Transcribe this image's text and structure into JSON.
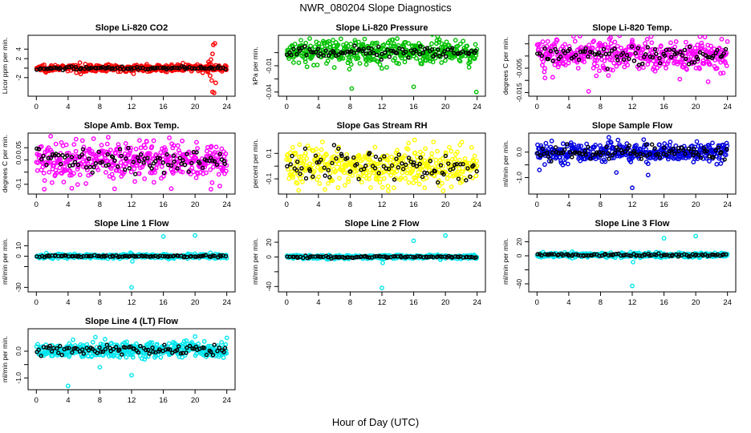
{
  "figure": {
    "title": "NWR_080204  Slope Diagnostics",
    "xlabel": "Hour of Day (UTC)"
  },
  "chart_data": [
    {
      "type": "scatter",
      "title": "Slope Li-820 CO2",
      "ylabel": "Licor ppm per min.",
      "color": "#ff0000",
      "xlim": [
        0,
        24
      ],
      "xticks": [
        "0",
        "4",
        "8",
        "12",
        "16",
        "20",
        "24"
      ],
      "ylim": [
        -5.4,
        6.4
      ],
      "yticks": [
        {
          "value": -2,
          "label": "-2"
        },
        {
          "value": 0,
          "label": ""
        },
        {
          "value": 2,
          "label": "2"
        },
        {
          "value": 4,
          "label": "4"
        }
      ],
      "spread": 0.35,
      "black_spread": 0.15,
      "center": 0,
      "outliers": [
        [
          21.6,
          -0.8
        ],
        [
          21.8,
          0.9
        ],
        [
          21.9,
          -1.6
        ],
        [
          22.0,
          1.8
        ],
        [
          22.1,
          -2.6
        ],
        [
          22.2,
          3.0
        ],
        [
          22.3,
          4.9
        ],
        [
          22.4,
          -5.2
        ],
        [
          22.5,
          5.2
        ],
        [
          22.6,
          -3.1
        ],
        [
          22.2,
          -5.0
        ],
        [
          21.7,
          1.3
        ]
      ]
    },
    {
      "type": "scatter",
      "title": "Slope Li-820 Pressure",
      "ylabel": "kPa per min.",
      "color": "#00c000",
      "xlim": [
        0,
        24
      ],
      "xticks": [
        "0",
        "4",
        "8",
        "12",
        "16",
        "20",
        "24"
      ],
      "ylim": [
        -0.042,
        0.022
      ],
      "yticks": [
        {
          "value": -0.04,
          "label": "-0.04"
        },
        {
          "value": -0.025,
          "label": ""
        },
        {
          "value": -0.01,
          "label": "-0.01"
        },
        {
          "value": 0.005,
          "label": ""
        }
      ],
      "spread": 0.007,
      "black_spread": 0.003,
      "center": 0.006,
      "outliers": [
        [
          7.9,
          -0.014
        ],
        [
          8.2,
          -0.036
        ],
        [
          16.0,
          -0.034
        ],
        [
          23.9,
          -0.04
        ],
        [
          6.0,
          -0.012
        ],
        [
          12.0,
          -0.013
        ]
      ]
    },
    {
      "type": "scatter",
      "title": "Slope Li-820 Temp.",
      "ylabel": "degrees C per min.",
      "color": "#ff00ff",
      "xlim": [
        0,
        24
      ],
      "xticks": [
        "0",
        "4",
        "8",
        "12",
        "16",
        "20",
        "24"
      ],
      "ylim": [
        -0.0155,
        0.0075
      ],
      "yticks": [
        {
          "value": -0.015,
          "label": "-0.015"
        },
        {
          "value": -0.01,
          "label": ""
        },
        {
          "value": -0.005,
          "label": "-0.005"
        },
        {
          "value": 0,
          "label": ""
        },
        {
          "value": 0.005,
          "label": ""
        }
      ],
      "spread": 0.0032,
      "black_spread": 0.0018,
      "center": 0.0005,
      "outliers": [
        [
          6.5,
          -0.0145
        ],
        [
          12.0,
          0.0065
        ],
        [
          1.0,
          -0.009
        ],
        [
          9.0,
          -0.008
        ],
        [
          18.0,
          -0.0095
        ]
      ]
    },
    {
      "type": "scatter",
      "title": "Slope Amb. Box Temp.",
      "ylabel": "degrees C per min.",
      "color": "#ff00ff",
      "xlim": [
        0,
        24
      ],
      "xticks": [
        "0",
        "4",
        "8",
        "12",
        "16",
        "20",
        "24"
      ],
      "ylim": [
        -0.13,
        0.1
      ],
      "yticks": [
        {
          "value": -0.1,
          "label": "-0.1"
        },
        {
          "value": -0.05,
          "label": ""
        },
        {
          "value": 0,
          "label": "0.0"
        },
        {
          "value": 0.05,
          "label": "0.05"
        }
      ],
      "spread": 0.04,
      "black_spread": 0.025,
      "center": 0.0,
      "outliers": [
        [
          1.0,
          -0.12
        ],
        [
          17.0,
          -0.118
        ],
        [
          22.0,
          -0.12
        ],
        [
          5.0,
          0.085
        ],
        [
          13.0,
          0.08
        ]
      ]
    },
    {
      "type": "scatter",
      "title": "Slope Gas Stream RH",
      "ylabel": "percent per min.",
      "color": "#ffff00",
      "xlim": [
        0,
        24
      ],
      "xticks": [
        "0",
        "4",
        "8",
        "12",
        "16",
        "20",
        "24"
      ],
      "ylim": [
        -0.2,
        0.24
      ],
      "yticks": [
        {
          "value": -0.1,
          "label": "-0.1"
        },
        {
          "value": 0,
          "label": ""
        },
        {
          "value": 0.1,
          "label": "0.1"
        }
      ],
      "spread": 0.07,
      "black_spread": 0.06,
      "center": 0.0,
      "outliers": [
        [
          1.5,
          -0.19
        ],
        [
          4.5,
          0.19
        ],
        [
          13.5,
          -0.17
        ],
        [
          18.5,
          0.19
        ]
      ]
    },
    {
      "type": "scatter",
      "title": "Slope Sample Flow",
      "ylabel": "ml/min per min.",
      "color": "#0000e0",
      "xlim": [
        0,
        24
      ],
      "xticks": [
        "0",
        "4",
        "8",
        "12",
        "16",
        "20",
        "24"
      ],
      "ylim": [
        -1.55,
        0.65
      ],
      "yticks": [
        {
          "value": -1,
          "label": "-1.0"
        },
        {
          "value": -0.5,
          "label": ""
        },
        {
          "value": 0,
          "label": "0.0"
        }
      ],
      "spread": 0.18,
      "black_spread": 0.14,
      "center": 0.0,
      "outliers": [
        [
          12.0,
          -1.4
        ],
        [
          14.0,
          -0.9
        ],
        [
          0.3,
          -0.7
        ],
        [
          10.0,
          -0.8
        ]
      ]
    },
    {
      "type": "scatter",
      "title": "Slope Line 1 Flow",
      "ylabel": "ml/min per min.",
      "color": "#00e5ee",
      "xlim": [
        0,
        24
      ],
      "xticks": [
        "0",
        "4",
        "8",
        "12",
        "16",
        "20",
        "24"
      ],
      "ylim": [
        -32,
        22
      ],
      "yticks": [
        {
          "value": -30,
          "label": "-30"
        },
        {
          "value": -10,
          "label": ""
        },
        {
          "value": 0,
          "label": "0"
        },
        {
          "value": 10,
          "label": "10"
        }
      ],
      "spread": 1.0,
      "black_spread": 0.4,
      "center": 0.0,
      "outliers": [
        [
          12.0,
          -30
        ],
        [
          16.0,
          19
        ],
        [
          20.0,
          20
        ],
        [
          12.1,
          -5
        ]
      ]
    },
    {
      "type": "scatter",
      "title": "Slope Line 2 Flow",
      "ylabel": "ml/min per min.",
      "color": "#00e5ee",
      "xlim": [
        0,
        24
      ],
      "xticks": [
        "0",
        "4",
        "8",
        "12",
        "16",
        "20",
        "24"
      ],
      "ylim": [
        -44,
        32
      ],
      "yticks": [
        {
          "value": -40,
          "label": "-40"
        },
        {
          "value": -20,
          "label": ""
        },
        {
          "value": 0,
          "label": "0"
        },
        {
          "value": 20,
          "label": "20"
        }
      ],
      "spread": 1.3,
      "black_spread": 0.7,
      "center": 0.0,
      "outliers": [
        [
          12.0,
          -42
        ],
        [
          16.0,
          22
        ],
        [
          20.0,
          29
        ],
        [
          12.1,
          -8
        ]
      ]
    },
    {
      "type": "scatter",
      "title": "Slope Line 3 Flow",
      "ylabel": "ml/min per min.",
      "color": "#00e5ee",
      "xlim": [
        0,
        24
      ],
      "xticks": [
        "0",
        "4",
        "8",
        "12",
        "16",
        "20",
        "24"
      ],
      "ylim": [
        -48,
        32
      ],
      "yticks": [
        {
          "value": -40,
          "label": "-40"
        },
        {
          "value": -20,
          "label": ""
        },
        {
          "value": 0,
          "label": "0"
        },
        {
          "value": 20,
          "label": "20"
        }
      ],
      "spread": 1.5,
      "black_spread": 1.0,
      "center": 1.0,
      "outliers": [
        [
          12.0,
          -43
        ],
        [
          16.0,
          25
        ],
        [
          20.0,
          28
        ],
        [
          12.1,
          -9
        ]
      ]
    },
    {
      "type": "scatter",
      "title": "Slope Line 4 (LT) Flow",
      "ylabel": "ml/min per min.",
      "color": "#00e5ee",
      "xlim": [
        0,
        24
      ],
      "xticks": [
        "0",
        "4",
        "8",
        "12",
        "16",
        "20",
        "24"
      ],
      "ylim": [
        -1.35,
        0.75
      ],
      "yticks": [
        {
          "value": -1,
          "label": "-1.0"
        },
        {
          "value": -0.5,
          "label": ""
        },
        {
          "value": 0,
          "label": "0.0"
        }
      ],
      "spread": 0.14,
      "black_spread": 0.1,
      "center": 0.05,
      "outliers": [
        [
          4.0,
          -1.3
        ],
        [
          12.0,
          -0.9
        ],
        [
          20.0,
          0.55
        ],
        [
          24.0,
          0.5
        ],
        [
          8.0,
          -0.6
        ]
      ]
    }
  ]
}
